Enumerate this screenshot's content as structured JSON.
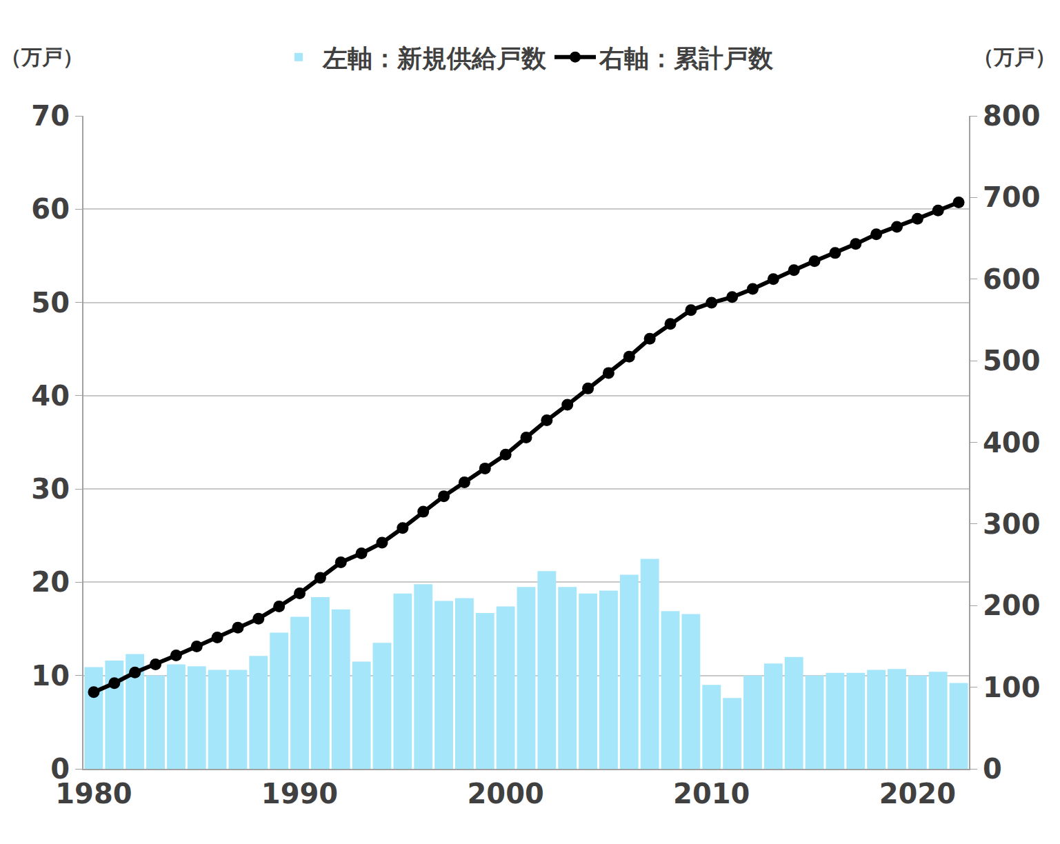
{
  "chart_data": {
    "type": "bar",
    "x": [
      1980,
      1981,
      1982,
      1983,
      1984,
      1985,
      1986,
      1987,
      1988,
      1989,
      1990,
      1991,
      1992,
      1993,
      1994,
      1995,
      1996,
      1997,
      1998,
      1999,
      2000,
      2001,
      2002,
      2003,
      2004,
      2005,
      2006,
      2007,
      2008,
      2009,
      2010,
      2011,
      2012,
      2013,
      2014,
      2015,
      2016,
      2017,
      2018,
      2019,
      2020,
      2021,
      2022
    ],
    "series": [
      {
        "name": "左軸：新規供給戸数",
        "type": "bar",
        "color": "#a6e6fb",
        "values": [
          10.9,
          11.6,
          12.3,
          10.0,
          11.2,
          11.0,
          10.6,
          10.6,
          12.1,
          14.6,
          16.3,
          18.4,
          17.1,
          11.5,
          13.5,
          18.8,
          19.8,
          18.0,
          18.3,
          16.7,
          17.4,
          19.5,
          21.2,
          19.5,
          18.8,
          19.1,
          20.8,
          22.5,
          16.9,
          16.6,
          9.0,
          7.6,
          10.0,
          11.3,
          12.0,
          10.0,
          10.3,
          10.3,
          10.6,
          10.7,
          10.0,
          10.4,
          9.2
        ]
      },
      {
        "name": "右軸：累計戸数",
        "type": "line",
        "color": "#000000",
        "marker": "circle",
        "line_style": "solid",
        "axis": "y2",
        "values": [
          94,
          105,
          118,
          128,
          139,
          150,
          161,
          173,
          184,
          199,
          215,
          234,
          253,
          264,
          277,
          295,
          315,
          334,
          351,
          368,
          385,
          406,
          427,
          446,
          466,
          485,
          505,
          527,
          545,
          562,
          571,
          578,
          588,
          600,
          611,
          622,
          632,
          643,
          655,
          664,
          674,
          684,
          694
        ]
      }
    ],
    "y_label": "（万戸）",
    "y2_label": "（万戸）",
    "xlim": [
      1979.5,
      2022.5
    ],
    "xticks": [
      1980,
      1990,
      2000,
      2010,
      2020
    ],
    "ylim": [
      0,
      70
    ],
    "yticks": [
      0,
      10,
      20,
      30,
      40,
      50,
      60,
      70
    ],
    "y2lim": [
      0,
      800
    ],
    "y2ticks": [
      0,
      100,
      200,
      300,
      400,
      500,
      600,
      700,
      800
    ],
    "grid": true,
    "legend": "top"
  }
}
